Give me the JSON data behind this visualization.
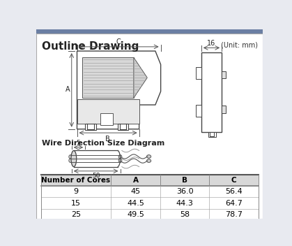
{
  "title": "Outline Drawing",
  "unit_label": "(Unit: mm)",
  "wire_section_title": "Wire Direction Size Diagram",
  "bg_color": "#e8eaf0",
  "table_headers": [
    "Number of Cores",
    "A",
    "B",
    "C"
  ],
  "table_rows": [
    [
      "9",
      "45",
      "36.0",
      "56.4"
    ],
    [
      "15",
      "44.5",
      "44.3",
      "64.7"
    ],
    [
      "25",
      "49.5",
      "58",
      "78.7"
    ]
  ],
  "dim_A": "A",
  "dim_B": "B",
  "dim_C": "C",
  "dim_16": "16",
  "dim_5": "5",
  "dim_50": "50"
}
